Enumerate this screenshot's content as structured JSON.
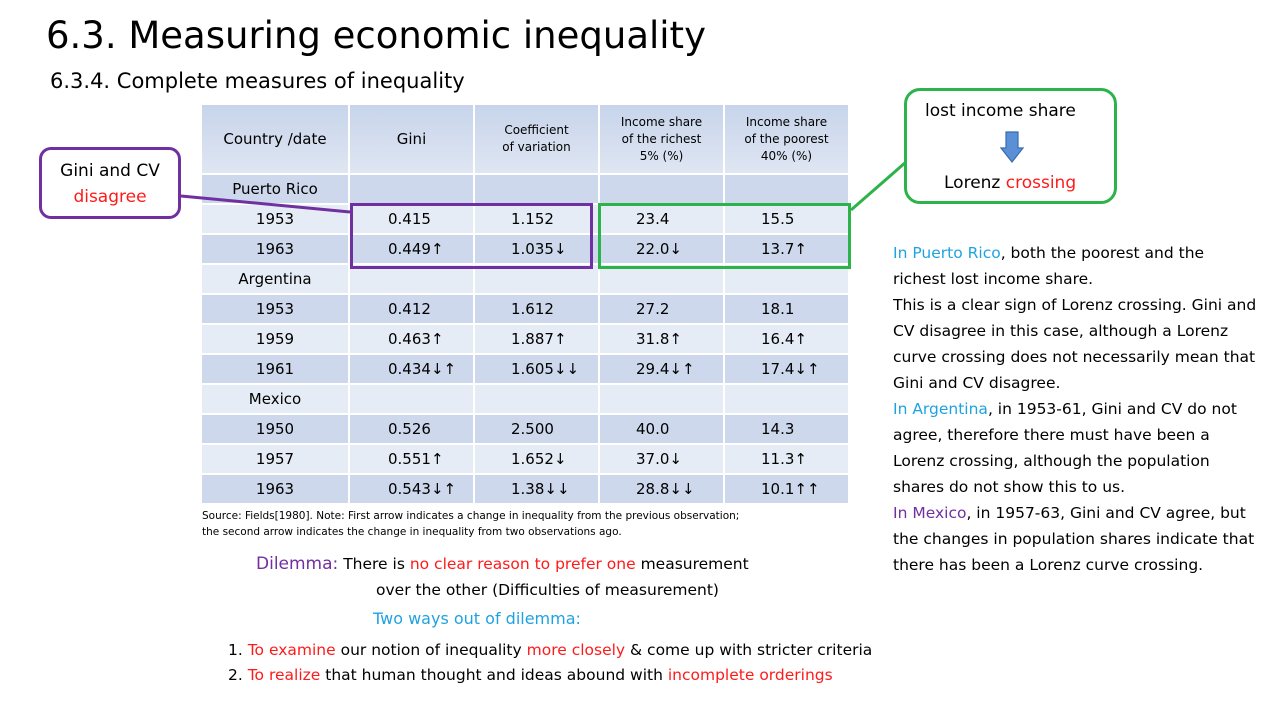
{
  "title": "6.3. Measuring economic inequality",
  "subtitle": "6.3.4. Complete measures of inequality",
  "table": {
    "headers": [
      "Country /date",
      "Gini",
      [
        "Coefficient",
        "of variation"
      ],
      [
        "Income share",
        "of the richest",
        "5% (%)"
      ],
      [
        "Income share",
        "of the poorest",
        "40% (%)"
      ]
    ],
    "rows": [
      {
        "country": "Puerto Rico"
      },
      {
        "cells": [
          "1953",
          "0.415",
          "1.152",
          "23.4",
          "15.5"
        ]
      },
      {
        "cells": [
          "1963",
          "0.449↑",
          "1.035↓",
          "22.0↓",
          "13.7↑"
        ]
      },
      {
        "country": "Argentina"
      },
      {
        "cells": [
          "1953",
          "0.412",
          "1.612",
          "27.2",
          "18.1"
        ]
      },
      {
        "cells": [
          "1959",
          "0.463↑",
          "1.887↑",
          "31.8↑",
          "16.4↑"
        ]
      },
      {
        "cells": [
          "1961",
          "0.434↓↑",
          "1.605↓↓",
          "29.4↓↑",
          "17.4↓↑"
        ]
      },
      {
        "country": "Mexico"
      },
      {
        "cells": [
          "1950",
          "0.526",
          "2.500",
          "40.0",
          "14.3"
        ]
      },
      {
        "cells": [
          "1957",
          "0.551↑",
          "1.652↓",
          "37.0↓",
          "11.3↑"
        ]
      },
      {
        "cells": [
          "1963",
          "0.543↓↑",
          "1.38↓↓",
          "28.8↓↓",
          "10.1↑↑"
        ]
      }
    ]
  },
  "source": {
    "line1": "Source: Fields[1980]. Note: First arrow indicates a change in inequality from the previous observation;",
    "line2": "the second arrow indicates the change in inequality from two observations ago."
  },
  "callout_gini": {
    "line1": "Gini and CV",
    "line2": "disagree"
  },
  "callout_lorenz": {
    "top": "lost income share",
    "bottom_a": "Lorenz ",
    "bottom_b": "crossing",
    "arrow_icon": "down-arrow-icon"
  },
  "paragraph": {
    "pr_a": "In Puerto Rico",
    "pr_b": ", both the poorest and the richest lost income share.",
    "pr_c": "This is a clear sign of Lorenz crossing. Gini and CV disagree in this case, although a Lorenz curve crossing does not necessarily mean that Gini and CV disagree.",
    "ar_a": "In Argentina",
    "ar_b": ", in 1953-61, Gini and CV do not agree, therefore there must have been a Lorenz crossing, although the population shares do not show this to us.",
    "mx_a": "In Mexico",
    "mx_b": ", in 1957-63, Gini and CV agree, but the changes in population shares indicate that there has been a Lorenz curve crossing."
  },
  "dilemma": {
    "label": "Dilemma:",
    "a": " There is ",
    "b": "no clear reason to prefer one",
    "c": " measurement",
    "line2": "over the other (Difficulties of measurement)"
  },
  "ways": {
    "title": "Two ways out of dilemma:",
    "item1_a": "1. ",
    "item1_b": "To examine",
    "item1_c": " our notion of inequality ",
    "item1_d": "more closely",
    "item1_e": " & come up with stricter criteria",
    "item2_a": "2. ",
    "item2_b": "To realize",
    "item2_c": " that human thought and ideas abound with ",
    "item2_d": "incomplete orderings"
  },
  "colors": {
    "purple": "#7030a0",
    "green": "#2cb34a",
    "red": "#ff1a1a",
    "blue": "#1fa3e0",
    "table_dark": "#cdd8ec",
    "table_light": "#e6ecf6"
  }
}
